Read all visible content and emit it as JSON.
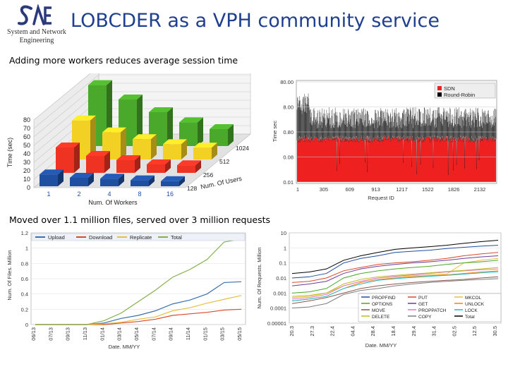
{
  "header": {
    "logo_lines": [
      "System and Network",
      "Engineering"
    ],
    "title": "LOBCDER as a VPH community service"
  },
  "section1": {
    "subtitle": "Adding more workers reduces average session time"
  },
  "section2": {
    "subtitle": "Moved over 1.1 million files, served over 3 million requests"
  },
  "colors": {
    "title": "#1f3f8f",
    "sdn": "#ee2020",
    "round_robin": "#000000"
  },
  "chart_data": [
    {
      "type": "bar",
      "variant": "3d",
      "xlabel": "Num. Of Workers",
      "ylabel": "Time (sec)",
      "zlabel": "Num. Of Users",
      "ylim": [
        0,
        80
      ],
      "yticks": [
        0,
        10,
        20,
        30,
        40,
        50,
        60,
        70,
        80
      ],
      "categories": [
        "1",
        "2",
        "4",
        "8",
        "16"
      ],
      "series": [
        {
          "name": "128",
          "color": "#1f4fa0",
          "values": [
            14,
            10,
            9,
            7,
            6
          ]
        },
        {
          "name": "256",
          "color": "#ee3322",
          "values": [
            30,
            20,
            15,
            10,
            9
          ]
        },
        {
          "name": "512",
          "color": "#f2d024",
          "values": [
            46,
            32,
            24,
            18,
            14
          ]
        },
        {
          "name": "1024",
          "color": "#4aa82a",
          "values": [
            72,
            55,
            40,
            28,
            20
          ]
        }
      ]
    },
    {
      "type": "area",
      "xlabel": "Request ID",
      "ylabel": "Time sec",
      "scale": "log",
      "yticks": [
        "0.01",
        "0.08",
        "0.80",
        "8.00",
        "80.00"
      ],
      "xticks": [
        "1",
        "305",
        "609",
        "913",
        "1217",
        "1522",
        "1826",
        "2132"
      ],
      "legend": "top-right",
      "series": [
        {
          "name": "SDN"
        },
        {
          "name": "Round-Robin"
        }
      ]
    },
    {
      "type": "line",
      "xlabel": "Date. MM/YY",
      "ylabel": "Num. Of Files. Million",
      "ylim": [
        0,
        1.2
      ],
      "yticks": [
        "0",
        "0.2",
        "0.4",
        "0.6",
        "0.8",
        "1",
        "1.2"
      ],
      "x": [
        "06/13",
        "07/13",
        "09/13",
        "11/13",
        "01/14",
        "03/14",
        "05/14",
        "07/14",
        "09/14",
        "11/14",
        "01/15",
        "03/15",
        "05/15"
      ],
      "legend": "top",
      "series": [
        {
          "name": "Upload",
          "color": "#3a6fb0",
          "values": [
            0,
            0,
            0,
            0,
            0.02,
            0.08,
            0.12,
            0.18,
            0.27,
            0.32,
            0.4,
            0.55,
            0.56
          ]
        },
        {
          "name": "Download",
          "color": "#d94a2a",
          "values": [
            0,
            0,
            0,
            0,
            0,
            0.02,
            0.04,
            0.07,
            0.12,
            0.14,
            0.16,
            0.19,
            0.2
          ]
        },
        {
          "name": "Replicate",
          "color": "#e6c040",
          "values": [
            0,
            0,
            0,
            0,
            0.01,
            0.03,
            0.07,
            0.1,
            0.18,
            0.22,
            0.28,
            0.33,
            0.38
          ]
        },
        {
          "name": "Total",
          "color": "#86b04a",
          "values": [
            0,
            0,
            0,
            0,
            0.05,
            0.15,
            0.3,
            0.45,
            0.62,
            0.72,
            0.85,
            1.08,
            1.12
          ]
        }
      ]
    },
    {
      "type": "line",
      "xlabel": "Date. MM/YY",
      "ylabel": "Num. Of Requests. Million",
      "scale": "log",
      "yticks": [
        "0.00001",
        "0.0001",
        "0.001",
        "0.01",
        "0.1",
        "1",
        "10"
      ],
      "x": [
        "20/03",
        "27/03",
        "03/04",
        "10/04",
        "17/04",
        "24/04",
        "01/05",
        "08/05",
        "15/05",
        "22/05",
        "29/05",
        "05/06",
        "12/06"
      ],
      "xticks": [
        "20.3",
        "27.3",
        "22.4",
        "04.4",
        "28.4",
        "18.4",
        "29.4",
        "31.4",
        "02.5",
        "12.5",
        "30.5"
      ],
      "legend": "bottom-inside",
      "series": [
        {
          "name": "PROPFIND",
          "color": "#1f4fa0",
          "values": [
            0.01,
            0.012,
            0.02,
            0.1,
            0.2,
            0.3,
            0.5,
            0.6,
            0.7,
            0.9,
            1.1,
            1.3,
            1.5
          ]
        },
        {
          "name": "PUT",
          "color": "#d94a2a",
          "values": [
            0.005,
            0.006,
            0.01,
            0.03,
            0.05,
            0.08,
            0.1,
            0.12,
            0.15,
            0.2,
            0.3,
            0.4,
            0.5
          ]
        },
        {
          "name": "MKCOL",
          "color": "#e6c040",
          "values": [
            0.0005,
            0.0006,
            0.001,
            0.003,
            0.006,
            0.01,
            0.012,
            0.014,
            0.016,
            0.018,
            0.1,
            0.15,
            0.2
          ]
        },
        {
          "name": "OPTIONS",
          "color": "#4aa82a",
          "values": [
            0.001,
            0.0012,
            0.002,
            0.01,
            0.02,
            0.03,
            0.04,
            0.05,
            0.06,
            0.08,
            0.1,
            0.12,
            0.15
          ]
        },
        {
          "name": "GET",
          "color": "#6a3d9a",
          "values": [
            0.003,
            0.004,
            0.006,
            0.02,
            0.04,
            0.06,
            0.08,
            0.1,
            0.12,
            0.15,
            0.2,
            0.25,
            0.3
          ]
        },
        {
          "name": "UNLOCK",
          "color": "#ff7f0e",
          "values": [
            0.0003,
            0.0004,
            0.0006,
            0.002,
            0.005,
            0.008,
            0.01,
            0.012,
            0.014,
            0.016,
            0.02,
            0.025,
            0.03
          ]
        },
        {
          "name": "MOVE",
          "color": "#8c564b",
          "values": [
            0.0002,
            0.0003,
            0.0005,
            0.001,
            0.002,
            0.003,
            0.004,
            0.005,
            0.006,
            0.007,
            0.008,
            0.01,
            0.012
          ]
        },
        {
          "name": "PROPPATCH",
          "color": "#e377c2",
          "values": [
            0.0004,
            0.0005,
            0.0008,
            0.003,
            0.006,
            0.01,
            0.013,
            0.016,
            0.02,
            0.025,
            0.03,
            0.035,
            0.04
          ]
        },
        {
          "name": "LOCK",
          "color": "#17becf",
          "values": [
            0.0003,
            0.0004,
            0.0006,
            0.002,
            0.004,
            0.007,
            0.009,
            0.011,
            0.013,
            0.015,
            0.018,
            0.022,
            0.026
          ]
        },
        {
          "name": "DELETE",
          "color": "#bcbd22",
          "values": [
            0.0006,
            0.0007,
            0.001,
            0.004,
            0.008,
            0.012,
            0.015,
            0.018,
            0.022,
            0.027,
            0.032,
            0.04,
            0.05
          ]
        },
        {
          "name": "COPY",
          "color": "#7f7f7f",
          "values": [
            0.0001,
            0.00012,
            0.0002,
            0.0008,
            0.0015,
            0.002,
            0.003,
            0.004,
            0.005,
            0.006,
            0.007,
            0.008,
            0.009
          ]
        },
        {
          "name": "Total",
          "color": "#000000",
          "values": [
            0.02,
            0.025,
            0.04,
            0.15,
            0.3,
            0.5,
            0.8,
            1.0,
            1.2,
            1.5,
            2.0,
            2.6,
            3.2
          ]
        }
      ]
    }
  ]
}
